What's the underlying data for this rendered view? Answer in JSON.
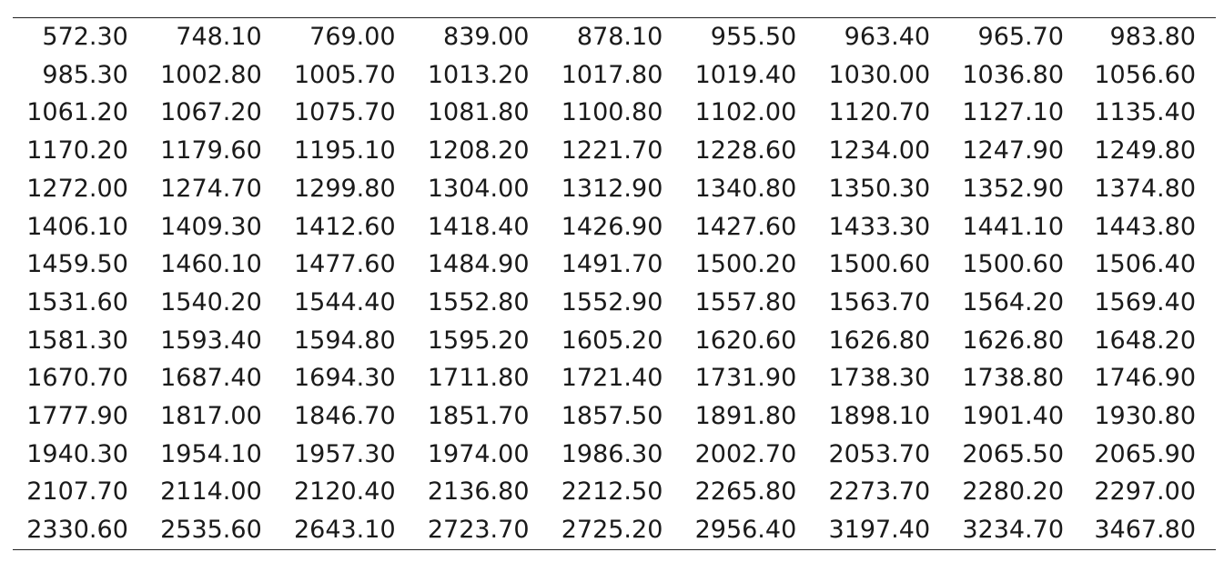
{
  "table": {
    "rows": [
      [
        "572.30",
        "748.10",
        "769.00",
        "839.00",
        "878.10",
        "955.50",
        "963.40",
        "965.70",
        "983.80"
      ],
      [
        "985.30",
        "1002.80",
        "1005.70",
        "1013.20",
        "1017.80",
        "1019.40",
        "1030.00",
        "1036.80",
        "1056.60"
      ],
      [
        "1061.20",
        "1067.20",
        "1075.70",
        "1081.80",
        "1100.80",
        "1102.00",
        "1120.70",
        "1127.10",
        "1135.40"
      ],
      [
        "1170.20",
        "1179.60",
        "1195.10",
        "1208.20",
        "1221.70",
        "1228.60",
        "1234.00",
        "1247.90",
        "1249.80"
      ],
      [
        "1272.00",
        "1274.70",
        "1299.80",
        "1304.00",
        "1312.90",
        "1340.80",
        "1350.30",
        "1352.90",
        "1374.80"
      ],
      [
        "1406.10",
        "1409.30",
        "1412.60",
        "1418.40",
        "1426.90",
        "1427.60",
        "1433.30",
        "1441.10",
        "1443.80"
      ],
      [
        "1459.50",
        "1460.10",
        "1477.60",
        "1484.90",
        "1491.70",
        "1500.20",
        "1500.60",
        "1500.60",
        "1506.40"
      ],
      [
        "1531.60",
        "1540.20",
        "1544.40",
        "1552.80",
        "1552.90",
        "1557.80",
        "1563.70",
        "1564.20",
        "1569.40"
      ],
      [
        "1581.30",
        "1593.40",
        "1594.80",
        "1595.20",
        "1605.20",
        "1620.60",
        "1626.80",
        "1626.80",
        "1648.20"
      ],
      [
        "1670.70",
        "1687.40",
        "1694.30",
        "1711.80",
        "1721.40",
        "1731.90",
        "1738.30",
        "1738.80",
        "1746.90"
      ],
      [
        "1777.90",
        "1817.00",
        "1846.70",
        "1851.70",
        "1857.50",
        "1891.80",
        "1898.10",
        "1901.40",
        "1930.80"
      ],
      [
        "1940.30",
        "1954.10",
        "1957.30",
        "1974.00",
        "1986.30",
        "2002.70",
        "2053.70",
        "2065.50",
        "2065.90"
      ],
      [
        "2107.70",
        "2114.00",
        "2120.40",
        "2136.80",
        "2212.50",
        "2265.80",
        "2273.70",
        "2280.20",
        "2297.00"
      ],
      [
        "2330.60",
        "2535.60",
        "2643.10",
        "2723.70",
        "2725.20",
        "2956.40",
        "3197.40",
        "3234.70",
        "3467.80"
      ]
    ]
  }
}
